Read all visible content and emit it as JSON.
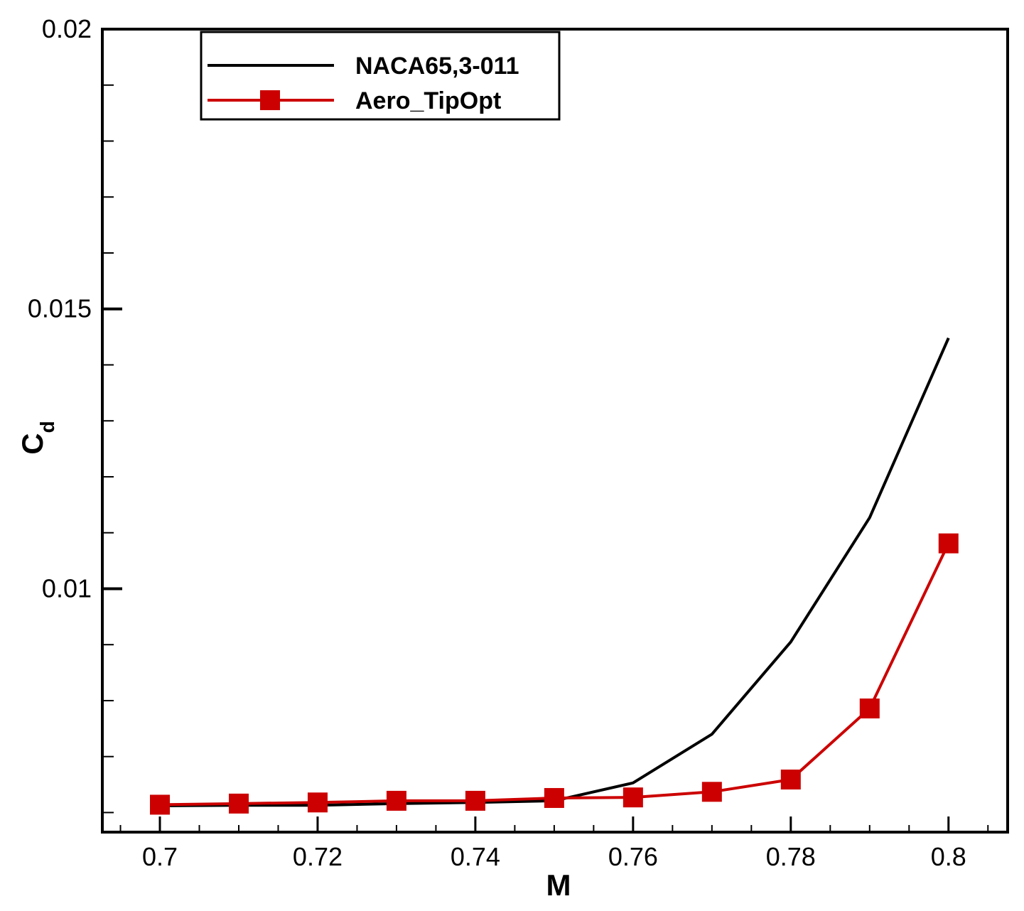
{
  "chart_data": {
    "type": "line",
    "title": "",
    "xlabel": "M",
    "ylabel_main": "C",
    "ylabel_sub": "d",
    "xlim": [
      0.6927,
      0.8075
    ],
    "ylim": [
      0.00565,
      0.02
    ],
    "x_ticks": [
      0.7,
      0.72,
      0.74,
      0.76,
      0.78,
      0.8
    ],
    "x_tick_labels": [
      "0.7",
      "0.72",
      "0.74",
      "0.76",
      "0.78",
      "0.8"
    ],
    "x_minor_step": 0.005,
    "y_ticks": [
      0.01,
      0.015,
      0.02
    ],
    "y_tick_labels": [
      "0.01",
      "0.015",
      "0.02"
    ],
    "y_minor_step": 0.001,
    "legend_position": "top-left",
    "series": [
      {
        "name": "NACA65,3-011",
        "color": "#000000",
        "marker": "none",
        "x": [
          0.7,
          0.71,
          0.72,
          0.73,
          0.74,
          0.75,
          0.76,
          0.77,
          0.78,
          0.79,
          0.8
        ],
        "values": [
          0.00612,
          0.00613,
          0.00613,
          0.00616,
          0.00618,
          0.00621,
          0.00653,
          0.0074,
          0.00905,
          0.01127,
          0.01448
        ]
      },
      {
        "name": "Aero_TipOpt",
        "color": "#cc0000",
        "marker": "square",
        "x": [
          0.7,
          0.71,
          0.72,
          0.73,
          0.74,
          0.75,
          0.76,
          0.77,
          0.78,
          0.79,
          0.8
        ],
        "values": [
          0.00614,
          0.00616,
          0.00618,
          0.00621,
          0.00621,
          0.00626,
          0.00627,
          0.00637,
          0.00659,
          0.00786,
          0.01081
        ]
      }
    ]
  }
}
